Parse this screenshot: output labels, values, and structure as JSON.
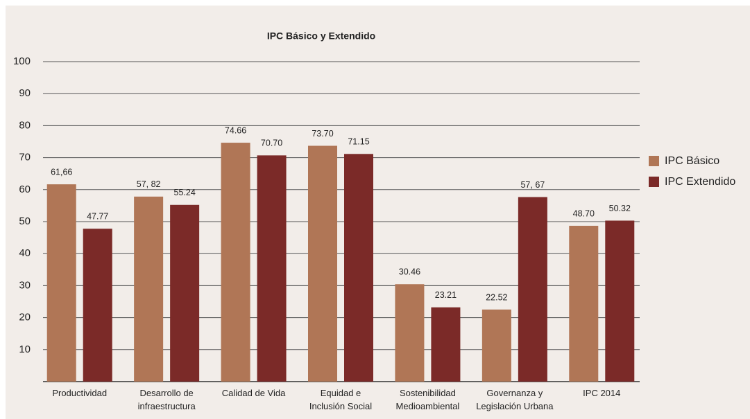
{
  "chart_data": {
    "type": "bar",
    "title": "IPC Básico y Extendido",
    "categories": [
      "Productividad",
      "Desarrollo de\ninfraestructura",
      "Calidad de Vida",
      "Equidad e\nInclusión Social",
      "Sostenibilidad\nMedioambiental",
      "Governanza y\nLegislación Urbana",
      "IPC 2014"
    ],
    "series": [
      {
        "name": "IPC Básico",
        "color": "#b07656",
        "values": [
          61.66,
          57.82,
          74.66,
          73.7,
          30.46,
          22.52,
          48.7
        ],
        "value_labels": [
          "61,66",
          "57, 82",
          "74.66",
          "73.70",
          "30.46",
          "22.52",
          "48.70"
        ]
      },
      {
        "name": "IPC Extendido",
        "color": "#7b2a28",
        "values": [
          47.77,
          55.24,
          70.7,
          71.15,
          23.21,
          57.67,
          50.32
        ],
        "value_labels": [
          "47.77",
          "55.24",
          "70.70",
          "71.15",
          "23.21",
          "57, 67",
          "50.32"
        ]
      }
    ],
    "ylim": [
      0,
      100
    ],
    "yticks": [
      10,
      20,
      30,
      40,
      50,
      60,
      70,
      80,
      90,
      100
    ],
    "grid": true,
    "legend": "right"
  }
}
